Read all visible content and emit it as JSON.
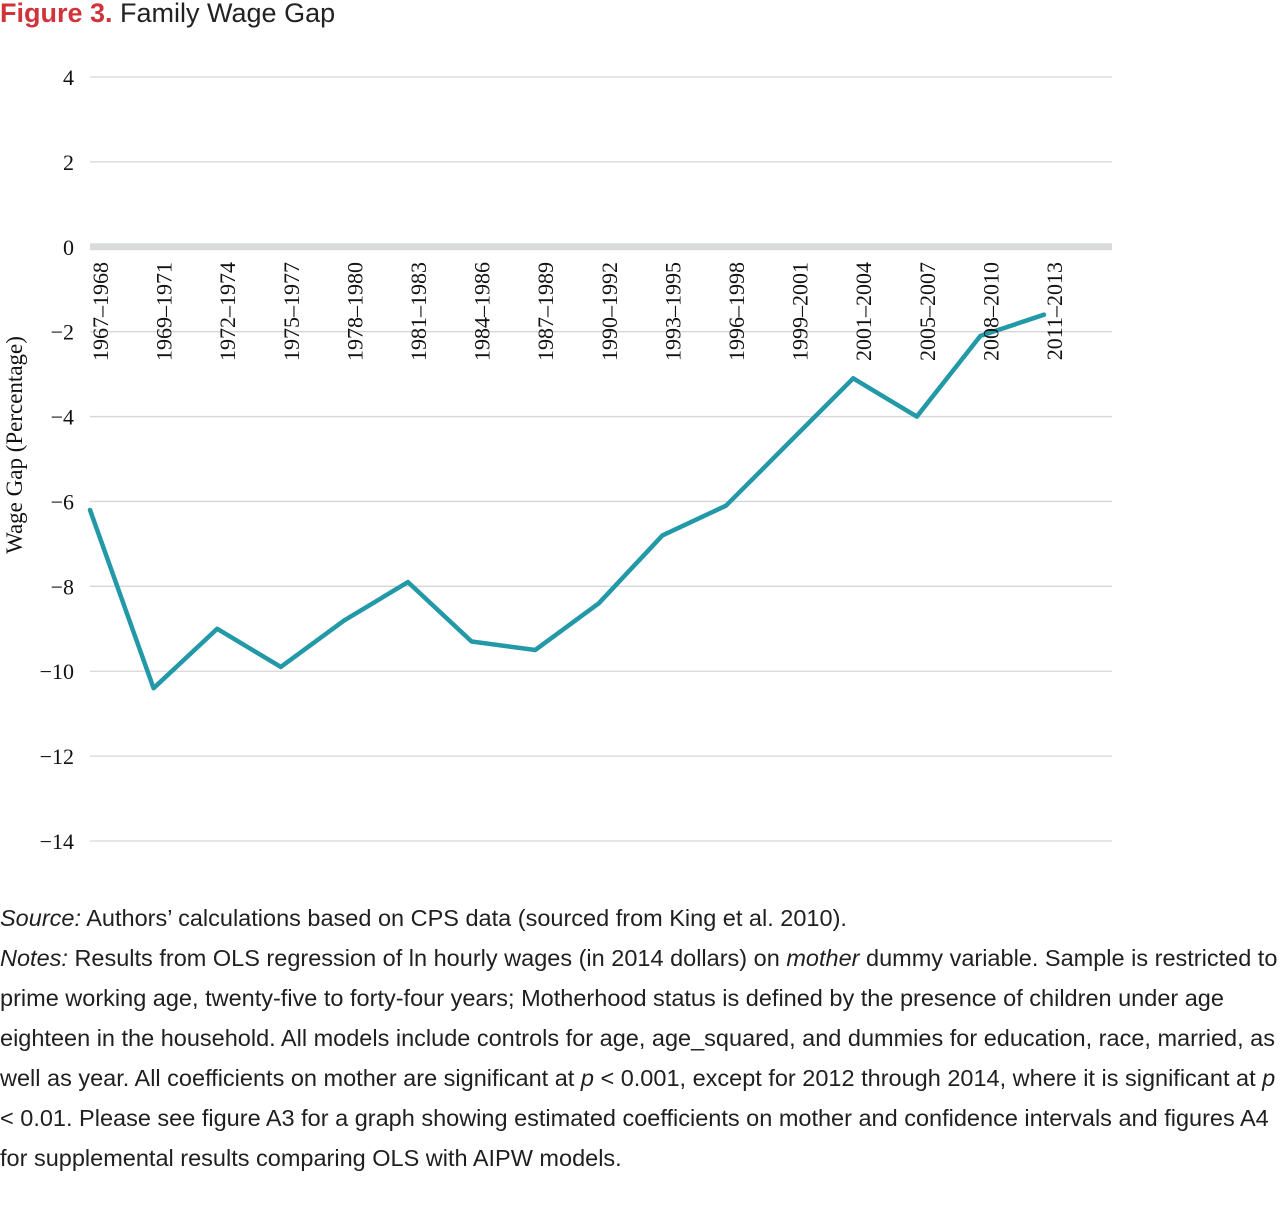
{
  "figure": {
    "label": "Figure 3.",
    "title": "Family Wage Gap"
  },
  "colors": {
    "line": "#2399a8",
    "zero_line": "#d9dbdb",
    "grid": "#d6d6d6",
    "figure_label": "#d0333a"
  },
  "chart_data": {
    "type": "line",
    "title": "Family Wage Gap",
    "xlabel": "",
    "ylabel": "Wage  Gap (Percentage)",
    "ylim": [
      -14,
      4
    ],
    "yticks": [
      4,
      2,
      0,
      -2,
      -4,
      -6,
      -8,
      -10,
      -12,
      -14
    ],
    "ytick_labels": [
      "4",
      "2",
      "0",
      "−2",
      "−4",
      "−6",
      "−8",
      "−10",
      "−12",
      "−14"
    ],
    "grid": true,
    "categories": [
      "1967–1968",
      "1969–1971",
      "1972–1974",
      "1975–1977",
      "1978–1980",
      "1981–1983",
      "1984–1986",
      "1987–1989",
      "1990–1992",
      "1993–1995",
      "1996–1998",
      "1999–2001",
      "2001–2004",
      "2005–2007",
      "2008–2010",
      "2011–2013"
    ],
    "series": [
      {
        "values": [
          -6.2,
          -10.4,
          -9.0,
          -9.9,
          -8.8,
          -7.9,
          -9.3,
          -9.5,
          -8.4,
          -6.8,
          -6.1,
          -4.6,
          -3.1,
          -4.0,
          -2.1,
          -1.6
        ]
      }
    ]
  },
  "notes": {
    "source_label": "Source:",
    "source_text": " Authors’ calculations based on CPS data (sourced from King et al. 2010).",
    "notes_label": "Notes:",
    "n1": " Results from OLS regression of ln hourly wages (in 2014 dollars) on ",
    "n_mother": "mother",
    "n2": " dummy variable. Sample is restricted to prime working age, twenty-five to forty-four years; Motherhood status is defined by the presence of children under age eighteen in the household. All models include controls for age, age_squared, and dummies for education, race, married, as well as year. All coefficients on mother are significant at ",
    "p1": "p",
    "n3": " < 0.001, except for 2012 through 2014, where it is significant at ",
    "p2": "p",
    "n4": " < 0.01. Please see figure A3 for a graph showing estimated coefficients on mother and confidence intervals and figures A4 for supplemental results comparing OLS with AIPW models."
  }
}
